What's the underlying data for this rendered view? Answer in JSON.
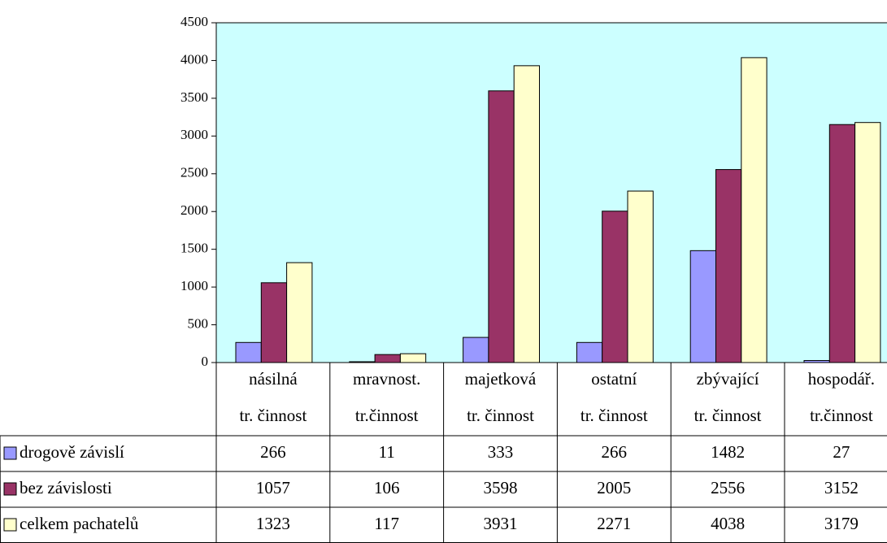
{
  "chart_data": {
    "type": "bar",
    "categories": [
      [
        "násilná",
        "tr. činnost"
      ],
      [
        "mravnost.",
        "tr.činnost"
      ],
      [
        "majetková",
        "tr. činnost"
      ],
      [
        "ostatní",
        "tr. činnost"
      ],
      [
        "zbývající",
        "tr. činnost"
      ],
      [
        "hospodář.",
        "tr.činnost"
      ]
    ],
    "series": [
      {
        "name": "drogově závislí",
        "color": "#9999ff",
        "values": [
          266,
          11,
          333,
          266,
          1482,
          27
        ]
      },
      {
        "name": "bez závislosti",
        "color": "#993366",
        "values": [
          1057,
          106,
          3598,
          2005,
          2556,
          3152
        ]
      },
      {
        "name": "celkem pachatelů",
        "color": "#ffffcc",
        "values": [
          1323,
          117,
          3931,
          2271,
          4038,
          3179
        ]
      }
    ],
    "ylim": [
      0,
      4500
    ],
    "yticks": [
      0,
      500,
      1000,
      1500,
      2000,
      2500,
      3000,
      3500,
      4000,
      4500
    ],
    "plot_background": "#ccffff"
  }
}
